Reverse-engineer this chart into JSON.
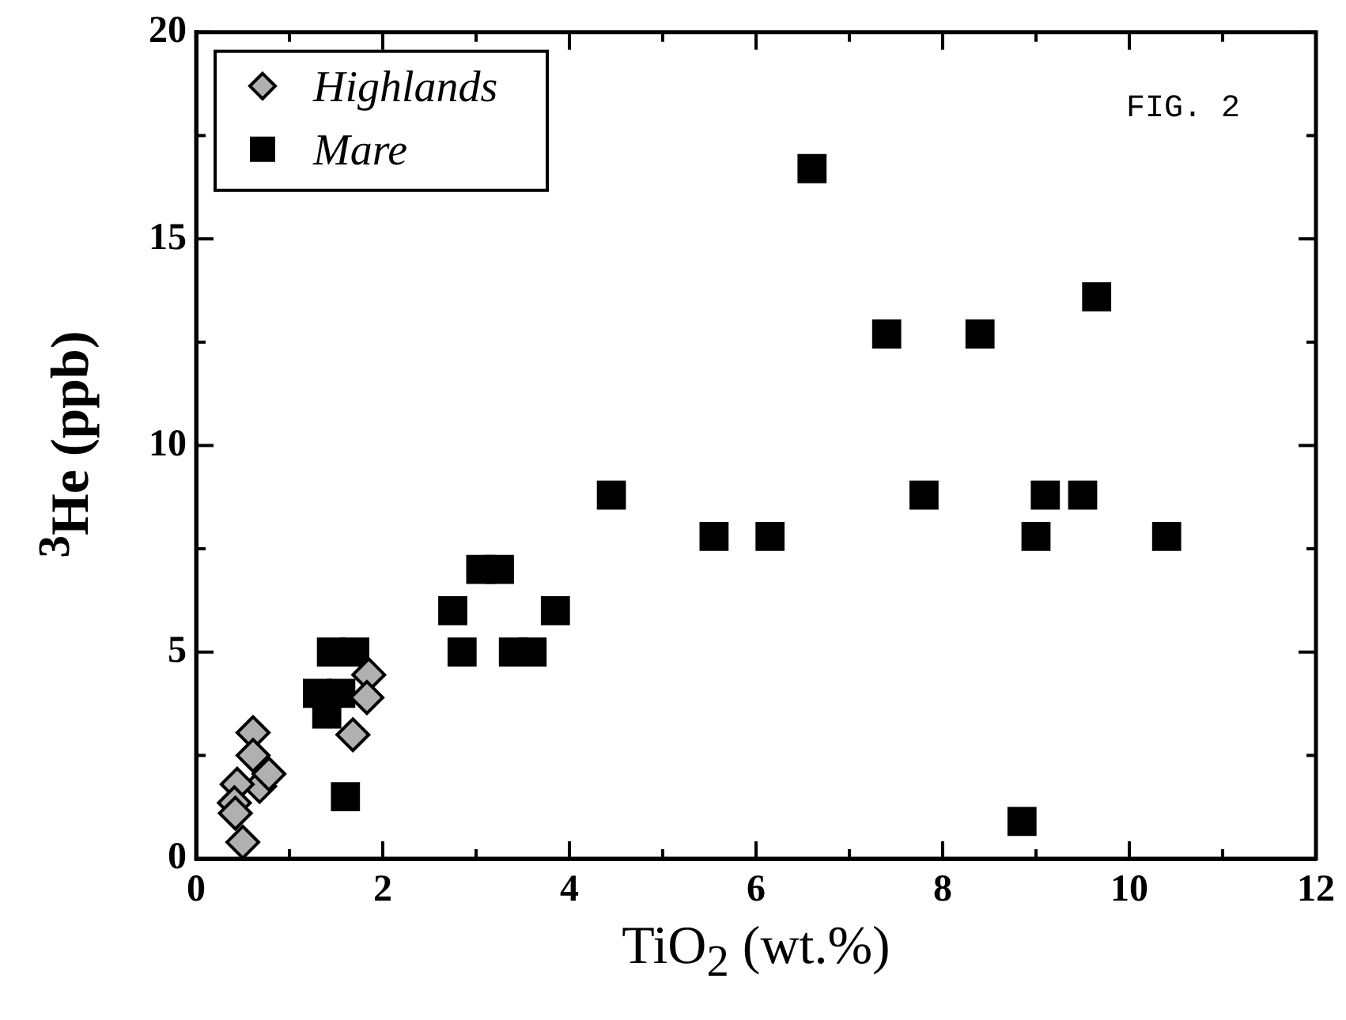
{
  "chart_data": {
    "type": "scatter",
    "xlabel": "TiO$_{2}$ (wt.%)",
    "ylabel": "$^{3}$He (ppb)",
    "xlim": [
      0,
      12
    ],
    "xticks": [
      0,
      {
        "value": 1,
        "label": null
      },
      2,
      {
        "value": 3,
        "label": null
      },
      4,
      {
        "value": 5,
        "label": null
      },
      6,
      {
        "value": 7,
        "label": null
      },
      8,
      {
        "value": 9,
        "label": null
      },
      10,
      {
        "value": 11,
        "label": null
      },
      12
    ],
    "ylim": [
      0,
      20
    ],
    "yticks": [
      0,
      {
        "value": 2.5,
        "label": null
      },
      5,
      {
        "value": 7.5,
        "label": null
      },
      10,
      {
        "value": 12.5,
        "label": null
      },
      15,
      {
        "value": 17.5,
        "label": null
      },
      20
    ],
    "grid": false,
    "legend": "top left",
    "annotations": [
      "FIG. 2"
    ],
    "series": [
      {
        "name": "Highlands",
        "color": "#b0b0b0",
        "marker": "diamond",
        "x": [
          0.61,
          0.61,
          0.68,
          0.78,
          0.44,
          0.41,
          0.42,
          0.5,
          1.85,
          1.83,
          1.68
        ],
        "values": [
          3.05,
          2.5,
          1.75,
          2.05,
          1.8,
          1.35,
          1.1,
          0.4,
          4.45,
          3.9,
          3.0
        ]
      },
      {
        "name": "Mare",
        "color": "#000000",
        "marker": "square",
        "x": [
          1.3,
          1.4,
          1.55,
          1.45,
          1.7,
          1.6,
          2.75,
          2.85,
          3.05,
          3.25,
          3.4,
          3.6,
          3.85,
          4.45,
          5.55,
          6.15,
          6.6,
          7.4,
          7.8,
          8.4,
          8.85,
          9.0,
          9.1,
          9.5,
          9.65,
          10.4
        ],
        "values": [
          4,
          3.5,
          4,
          5,
          5,
          1.5,
          6,
          5,
          7,
          7,
          5,
          5,
          6,
          8.8,
          7.8,
          7.8,
          16.7,
          12.7,
          8.8,
          12.7,
          0.9,
          7.8,
          8.8,
          8.8,
          13.6,
          7.8
        ]
      }
    ]
  }
}
